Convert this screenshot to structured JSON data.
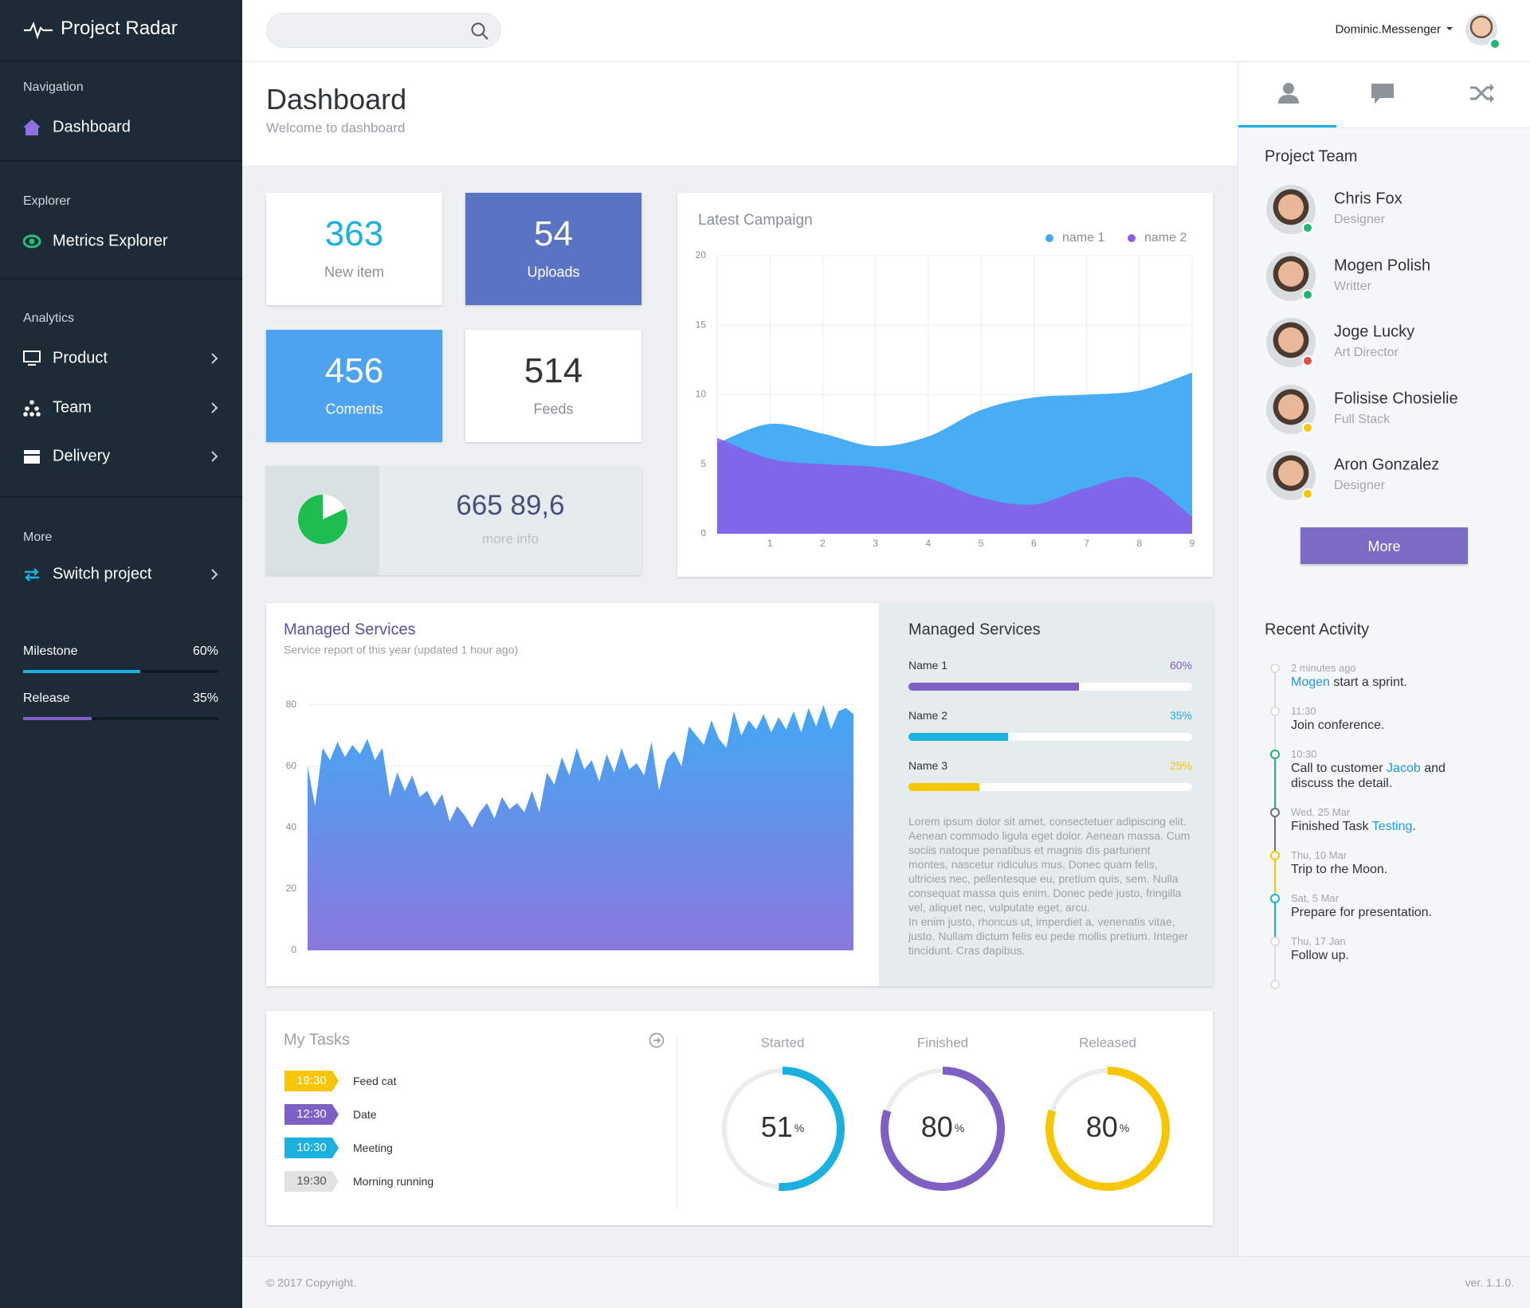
{
  "sidebar": {
    "brand": "Project Radar",
    "sections": [
      {
        "title": "Navigation",
        "items": [
          {
            "label": "Dashboard",
            "arrow": false
          }
        ]
      },
      {
        "title": "Explorer",
        "items": [
          {
            "label": "Metrics Explorer",
            "arrow": false
          }
        ]
      },
      {
        "title": "Analytics",
        "items": [
          {
            "label": "Product",
            "arrow": true
          },
          {
            "label": "Team",
            "arrow": true
          },
          {
            "label": "Delivery",
            "arrow": true
          }
        ]
      },
      {
        "title": "More",
        "items": [
          {
            "label": "Switch project",
            "arrow": true
          }
        ]
      }
    ],
    "progress": [
      {
        "name": "Milestone",
        "value": 60,
        "label": "60%",
        "color": "#1ab0e0"
      },
      {
        "name": "Release",
        "value": 35,
        "label": "35%",
        "color": "#7e5fc4"
      }
    ]
  },
  "topbar": {
    "user": "Dominic.Messenger"
  },
  "header": {
    "title": "Dashboard",
    "subtitle": "Welcome to dashboard"
  },
  "stats": [
    {
      "value": 363,
      "label": "New item",
      "background": "#ffffff",
      "color": "#1ab0e0"
    },
    {
      "value": 54,
      "label": "Uploads",
      "background": "#5b73c3",
      "color": "#ffffff"
    },
    {
      "value": 456,
      "label": "Coments",
      "background": "#4da3ef",
      "color": "#ffffff"
    },
    {
      "value": 514,
      "label": "Feeds",
      "background": "#ffffff",
      "color": "#333333"
    }
  ],
  "info": {
    "value": "665 89,6",
    "label": "more info",
    "pie": 82,
    "color": "#1ebd4f"
  },
  "campaign": {
    "type": "area",
    "title": "Latest Campaign",
    "x": [
      0,
      1,
      2,
      3,
      4,
      5,
      6,
      7,
      8,
      9
    ],
    "xlim": [
      0,
      9
    ],
    "xticks": [
      1,
      2,
      3,
      4,
      5,
      6,
      7,
      8,
      9
    ],
    "ylim": [
      0,
      20
    ],
    "yticks": [
      0,
      5,
      10,
      15,
      20
    ],
    "grid": true,
    "series": [
      {
        "name": "name 1",
        "color": "#3fa9f5",
        "values": [
          6.5,
          7.9,
          7.2,
          6.3,
          7.0,
          8.9,
          9.8,
          10.0,
          10.3,
          11.6
        ]
      },
      {
        "name": "name 2",
        "color": "#8a5be6",
        "values": [
          6.9,
          5.4,
          5.0,
          4.8,
          4.0,
          2.6,
          2.1,
          3.3,
          4.0,
          1.2
        ]
      }
    ]
  },
  "services": {
    "type": "area",
    "title": "Managed Services",
    "subtitle": "Service report of this year (updated 1 hour ago)",
    "ylim": [
      0,
      80
    ],
    "yticks": [
      0,
      20,
      40,
      60,
      80
    ],
    "grid": true,
    "color": "#42a8f5",
    "values": [
      60,
      47,
      66,
      62,
      68,
      63,
      67,
      64,
      69,
      62,
      66,
      50,
      58,
      52,
      57,
      50,
      52,
      47,
      51,
      42,
      47,
      44,
      40,
      45,
      48,
      43,
      50,
      46,
      48,
      45,
      52,
      45,
      58,
      54,
      63,
      57,
      66,
      59,
      62,
      55,
      64,
      58,
      66,
      59,
      61,
      57,
      68,
      52,
      62,
      65,
      60,
      73,
      70,
      67,
      75,
      69,
      66,
      78,
      70,
      75,
      72,
      77,
      71,
      76,
      72,
      78,
      71,
      79,
      73,
      80,
      72,
      78,
      79,
      77
    ]
  },
  "services_summary": {
    "title": "Managed Services",
    "bars": [
      {
        "name": "Name 1",
        "value": 60,
        "label": "60%",
        "color": "#7e5fc4"
      },
      {
        "name": "Name 2",
        "value": 35,
        "label": "35%",
        "color": "#1ab0e0"
      },
      {
        "name": "Name 3",
        "value": 25,
        "label": "25%",
        "color": "#f5c800"
      }
    ],
    "text": [
      "Lorem ipsum dolor sit amet, consectetuer adipiscing elit. Aenean commodo ligula eget dolor. Aenean massa. Cum sociis natoque penatibus et magnis dis parturient montes, nascetur ridiculus mus. Donec quam felis, ultricies nec, pellentesque eu, pretium quis, sem. Nulla consequat massa quis enim. Donec pede justo, fringilla vel, aliquet nec, vulputate eget, arcu.",
      "In enim justo, rhoncus ut, imperdiet a, venenatis vitae, justo. Nullam dictum felis eu pede mollis pretium. Integer tincidunt. Cras dapibus."
    ]
  },
  "tasks": {
    "title": "My Tasks",
    "items": [
      {
        "time": "19:30",
        "name": "Feed cat",
        "color": "#f7c600",
        "text_color": "#ffffff"
      },
      {
        "time": "12:30",
        "name": "Date",
        "color": "#7e5fc4",
        "text_color": "#ffffff"
      },
      {
        "time": "10:30",
        "name": "Meeting",
        "color": "#1ab0e0",
        "text_color": "#ffffff"
      },
      {
        "time": "19:30",
        "name": "Morning running",
        "color": "#e2e2e2",
        "text_color": "#555555"
      }
    ]
  },
  "gauges": {
    "unit": "%",
    "items": [
      {
        "name": "Started",
        "value": 51,
        "color": "#1ab0e0"
      },
      {
        "name": "Finished",
        "value": 80,
        "color": "#7e5fc4"
      },
      {
        "name": "Released",
        "value": 80,
        "color": "#f7c600"
      }
    ]
  },
  "team": {
    "title": "Project Team",
    "button": "More",
    "members": [
      {
        "name": "Chris Fox",
        "role": "Designer",
        "status": "#21b573"
      },
      {
        "name": "Mogen Polish",
        "role": "Writter",
        "status": "#21b573"
      },
      {
        "name": "Joge Lucky",
        "role": "Art Director",
        "status": "#e74c3c"
      },
      {
        "name": "Folisise Chosielie",
        "role": "Full Stack",
        "status": "#f7c600"
      },
      {
        "name": "Aron Gonzalez",
        "role": "Designer",
        "status": "#f7c600"
      }
    ]
  },
  "activity": {
    "title": "Recent Activity",
    "items": [
      {
        "time": "2 minutes ago",
        "color": "#dddddd",
        "parts": [
          {
            "text": "Mogen",
            "color": "#1a9be0"
          },
          {
            "text": " start a sprint."
          }
        ]
      },
      {
        "time": "11:30",
        "color": "#dddddd",
        "parts": [
          {
            "text": "Join conference."
          }
        ]
      },
      {
        "time": "10:30",
        "color": "#21b573",
        "parts": [
          {
            "text": "Call to customer "
          },
          {
            "text": "Jacob",
            "color": "#1a9be0"
          },
          {
            "text": " and discuss the detail."
          }
        ]
      },
      {
        "time": "Wed, 25 Mar",
        "color": "#6d6d8a",
        "parts": [
          {
            "text": "Finished Task "
          },
          {
            "text": "Testing",
            "color": "#1a9be0"
          },
          {
            "text": "."
          }
        ]
      },
      {
        "time": "Thu, 10 Mar",
        "color": "#f7c600",
        "parts": [
          {
            "text": "Trip to rhe Moon."
          }
        ]
      },
      {
        "time": "Sat, 5 Mar",
        "color": "#1ab0e0",
        "parts": [
          {
            "text": "Prepare for presentation."
          }
        ]
      },
      {
        "time": "Thu, 17 Jan",
        "color": "#dddddd",
        "parts": [
          {
            "text": "Follow up."
          }
        ]
      }
    ]
  },
  "footer": {
    "copyright": "© 2017 Copyright.",
    "version": "ver. 1.1.0."
  }
}
